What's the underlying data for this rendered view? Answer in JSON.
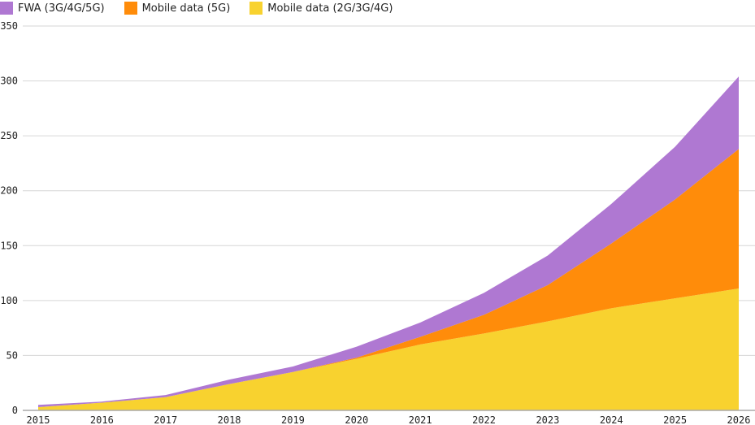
{
  "chart_data": {
    "type": "area",
    "stacked": true,
    "title": "",
    "xlabel": "",
    "ylabel": "",
    "x": [
      "2015",
      "2016",
      "2017",
      "2018",
      "2019",
      "2020",
      "2021",
      "2022",
      "2023",
      "2024",
      "2025",
      "2026"
    ],
    "ylim": [
      0,
      350
    ],
    "yticks": [
      "0",
      "50",
      "100",
      "150",
      "200",
      "250",
      "300",
      "350"
    ],
    "grid": true,
    "legend": "top-left",
    "series": [
      {
        "name": "Mobile data (2G/3G/4G)",
        "color": "#f8d22f",
        "values": [
          3,
          7,
          12,
          24,
          35,
          47,
          60,
          70,
          81,
          93,
          102,
          111
        ]
      },
      {
        "name": "Mobile data (5G)",
        "color": "#ff8c0a",
        "values": [
          0,
          0,
          0,
          0,
          0,
          1,
          7,
          17,
          33,
          59,
          90,
          127
        ]
      },
      {
        "name": "FWA (3G/4G/5G)",
        "color": "#af78d2",
        "values": [
          2,
          1,
          2,
          4,
          5,
          10,
          13,
          20,
          27,
          36,
          48,
          66
        ]
      }
    ]
  }
}
